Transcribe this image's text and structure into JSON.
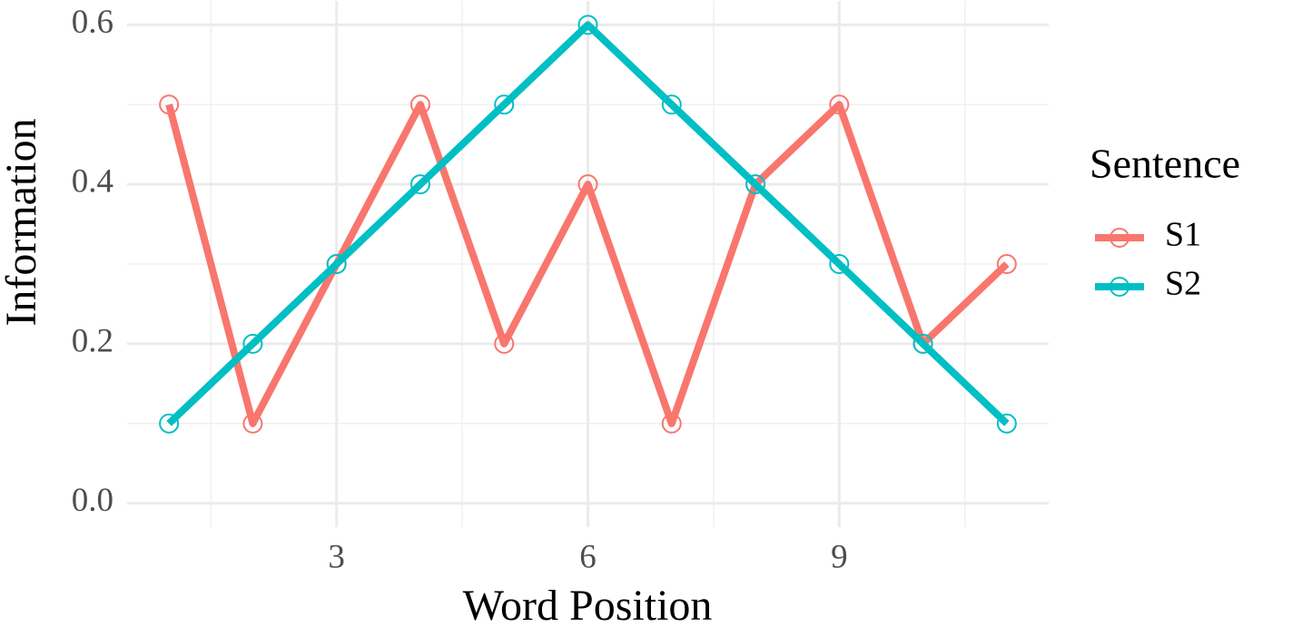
{
  "chart_data": {
    "type": "line",
    "x_label": "Word Position",
    "y_label": "Information",
    "x": [
      1,
      2,
      3,
      4,
      5,
      6,
      7,
      8,
      9,
      10,
      11
    ],
    "series": [
      {
        "name": "S1",
        "color": "#F8766D",
        "values": [
          0.5,
          0.1,
          0.3,
          0.5,
          0.2,
          0.4,
          0.1,
          0.4,
          0.5,
          0.2,
          0.3
        ]
      },
      {
        "name": "S2",
        "color": "#00BFC4",
        "values": [
          0.1,
          0.2,
          0.3,
          0.4,
          0.5,
          0.6,
          0.5,
          0.4,
          0.3,
          0.2,
          0.1
        ]
      }
    ],
    "legend_title": "Sentence",
    "legend_position": "right",
    "xlim": [
      0.5,
      11.5
    ],
    "xticks": [
      3,
      6,
      9
    ],
    "xminor": [
      1.5,
      4.5,
      7.5,
      10.5
    ],
    "ylim": [
      -0.03,
      0.63
    ],
    "yticks": [
      {
        "value": 0,
        "label": "0.0"
      },
      0.2,
      0.4,
      0.6
    ],
    "yminor": [
      0.1,
      0.3,
      0.5
    ],
    "grid": true
  }
}
